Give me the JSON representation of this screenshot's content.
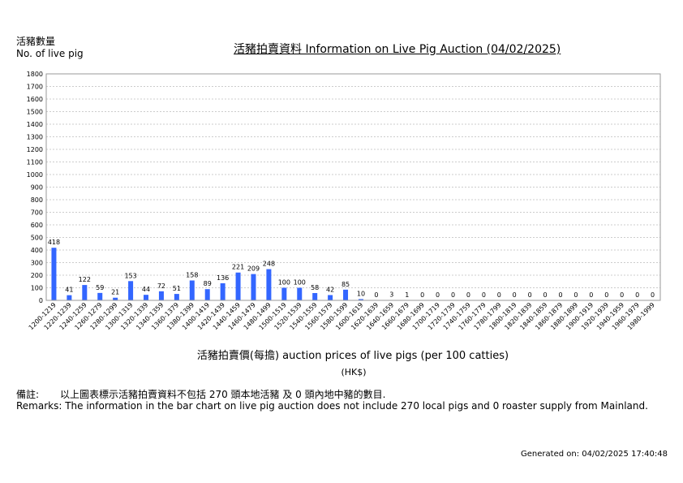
{
  "header": {
    "ylabel_zh": "活豬數量",
    "ylabel_en": "No. of live pig",
    "title": "活豬拍賣資料 Information on Live Pig Auction (04/02/2025)"
  },
  "footer": {
    "xlabel": "活豬拍賣價(每擔) auction prices of live pigs (per 100 catties)",
    "xunit": "(HK$)",
    "remarks_zh_label": "備註:",
    "remarks_zh": "以上圖表標示活豬拍賣資料不包括 270 頭本地活豬 及 0 頭內地中豬的數目.",
    "remarks_en": "Remarks: The information in the bar chart on live pig auction does not include 270 local pigs and 0 roaster supply from Mainland.",
    "generated": "Generated on: 04/02/2025 17:40:48"
  },
  "chart_data": {
    "type": "bar",
    "title": "活豬拍賣資料 Information on Live Pig Auction (04/02/2025)",
    "xlabel": "活豬拍賣價(每擔) auction prices of live pigs (per 100 catties)",
    "ylabel": "活豬數量 No. of live pig",
    "ylim": [
      0,
      1800
    ],
    "yticks": [
      0,
      100,
      200,
      300,
      400,
      500,
      600,
      700,
      800,
      900,
      1000,
      1100,
      1200,
      1300,
      1400,
      1500,
      1600,
      1700,
      1800
    ],
    "grid": true,
    "bar_color": "#3366ff",
    "categories": [
      "1200-1219",
      "1220-1239",
      "1240-1259",
      "1260-1279",
      "1280-1299",
      "1300-1319",
      "1320-1339",
      "1340-1359",
      "1360-1379",
      "1380-1399",
      "1400-1419",
      "1420-1439",
      "1440-1459",
      "1460-1479",
      "1480-1499",
      "1500-1519",
      "1520-1539",
      "1540-1559",
      "1560-1579",
      "1580-1599",
      "1600-1619",
      "1620-1639",
      "1640-1659",
      "1660-1679",
      "1680-1699",
      "1700-1719",
      "1720-1739",
      "1740-1759",
      "1760-1779",
      "1780-1799",
      "1800-1819",
      "1820-1839",
      "1840-1859",
      "1860-1879",
      "1880-1899",
      "1900-1919",
      "1920-1939",
      "1940-1959",
      "1960-1979",
      "1980-1999"
    ],
    "values": [
      418,
      41,
      122,
      59,
      21,
      153,
      44,
      72,
      51,
      158,
      89,
      136,
      221,
      209,
      248,
      100,
      100,
      58,
      42,
      85,
      10,
      0,
      3,
      1,
      0,
      0,
      0,
      0,
      0,
      0,
      0,
      0,
      0,
      0,
      0,
      0,
      0,
      0,
      0,
      0
    ]
  }
}
